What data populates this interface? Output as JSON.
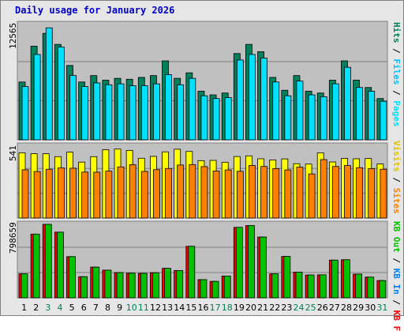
{
  "title": "Daily usage for January 2026",
  "colors": {
    "hits": "#00805c",
    "files": "#00c0ff",
    "pages": "#00e0ff",
    "visits": "#ffff00",
    "sites": "#ff8000",
    "kbin": "#00c000",
    "kbout": "#ff0000",
    "panel_bg": "#c0c0c0",
    "frame_bg": "#e6e6e6",
    "weekday": "#000000",
    "weekend": "#00805c"
  },
  "labels": {
    "hits_files_pages": [
      "Pages",
      "Files",
      "Hits"
    ],
    "visits_sites": [
      "Sites",
      "Visits"
    ],
    "kb": [
      "KB F",
      "KB In",
      "KB Out"
    ],
    "hits_max": "12565",
    "visits_max": "541",
    "kb_max": "798659"
  },
  "chart_data": [
    {
      "type": "bar",
      "title": "Daily usage for January 2026",
      "x": [
        1,
        2,
        3,
        4,
        5,
        6,
        7,
        8,
        9,
        10,
        11,
        12,
        13,
        14,
        15,
        16,
        17,
        18,
        19,
        20,
        21,
        22,
        23,
        24,
        25,
        26,
        27,
        28,
        29,
        30,
        31
      ],
      "weekend_days": [
        3,
        4,
        10,
        11,
        17,
        18,
        24,
        25,
        31
      ],
      "ylim": [
        0,
        12565
      ],
      "grid": true,
      "series": [
        {
          "name": "Hits",
          "values": [
            6300,
            10200,
            11600,
            10400,
            8100,
            6300,
            7000,
            6500,
            6700,
            6600,
            6800,
            7000,
            8600,
            6700,
            7300,
            5300,
            4900,
            5100,
            9400,
            10400,
            9600,
            6800,
            5400,
            7000,
            5300,
            5100,
            6500,
            8600,
            6500,
            5700,
            4500
          ]
        },
        {
          "name": "Files",
          "values": [
            5800,
            9300,
            12200,
            10100,
            7000,
            5800,
            6200,
            6000,
            6100,
            5900,
            5900,
            6100,
            7100,
            6000,
            6700,
            4800,
            4500,
            4600,
            8700,
            9300,
            8900,
            6300,
            4800,
            6400,
            4900,
            4700,
            6100,
            7900,
            5700,
            5300,
            4200
          ]
        },
        {
          "name": "Pages",
          "values": [
            5800,
            9300,
            12200,
            10100,
            7000,
            5800,
            6200,
            6000,
            6100,
            5900,
            5900,
            6100,
            7100,
            6000,
            6700,
            4800,
            4500,
            4600,
            8700,
            9300,
            8900,
            6300,
            4800,
            6400,
            4900,
            4700,
            6100,
            7900,
            5700,
            5300,
            4200
          ]
        }
      ]
    },
    {
      "type": "bar",
      "ylim": [
        0,
        541
      ],
      "grid": true,
      "series": [
        {
          "name": "Visits",
          "values": [
            491,
            484,
            484,
            462,
            496,
            421,
            462,
            514,
            519,
            509,
            450,
            464,
            498,
            518,
            501,
            432,
            434,
            420,
            463,
            468,
            446,
            437,
            445,
            409,
            406,
            491,
            422,
            449,
            446,
            448,
            407
          ]
        },
        {
          "name": "Sites",
          "values": [
            363,
            350,
            367,
            377,
            375,
            346,
            345,
            353,
            385,
            401,
            351,
            364,
            373,
            399,
            402,
            387,
            354,
            362,
            352,
            396,
            388,
            372,
            362,
            383,
            332,
            440,
            388,
            395,
            379,
            372,
            367
          ]
        }
      ]
    },
    {
      "type": "bar",
      "ylim": [
        0,
        798659
      ],
      "grid": true,
      "series": [
        {
          "name": "KB In",
          "values": [
            261000,
            693000,
            798659,
            714000,
            448000,
            230000,
            334000,
            301000,
            275000,
            268000,
            266000,
            273000,
            321000,
            297000,
            560000,
            198000,
            179000,
            237000,
            766000,
            786000,
            661000,
            261000,
            450000,
            280000,
            248000,
            250000,
            410000,
            414000,
            258000,
            225000,
            188000
          ]
        },
        {
          "name": "KB Out",
          "values": [
            261000,
            693000,
            798659,
            714000,
            448000,
            230000,
            334000,
            301000,
            275000,
            268000,
            266000,
            273000,
            321000,
            297000,
            560000,
            198000,
            179000,
            237000,
            766000,
            786000,
            661000,
            261000,
            450000,
            280000,
            248000,
            250000,
            410000,
            414000,
            258000,
            225000,
            188000
          ]
        }
      ]
    }
  ]
}
